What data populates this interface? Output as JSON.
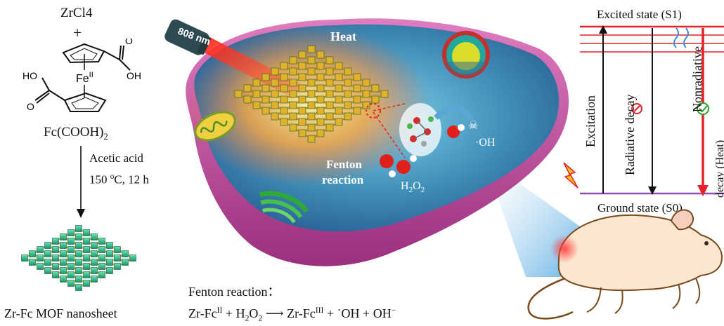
{
  "synthesis": {
    "reagent": "ZrCl4",
    "plus": "+",
    "fe_label": "Fe",
    "fe_ox": "II",
    "ho_label": "HO",
    "oh_label": "OH",
    "o_label": "O",
    "ligand_main": "Fc(COOH)",
    "ligand_sub": "2",
    "condition_1": "Acetic acid",
    "condition_2_pre": "150 ",
    "condition_2_sup": "o",
    "condition_2_post": "C, 12 h",
    "product": "Zr-Fc MOF nanosheet"
  },
  "cell": {
    "laser_label": "808 nm",
    "heat_label": "Heat",
    "fenton_label_1": "Fenton",
    "fenton_label_2": "reaction",
    "h2o2_main": "H",
    "h2o2_sub1": "2",
    "h2o2_mid": "O",
    "h2o2_sub2": "2",
    "oh_radical": "OH",
    "radical_dot": "·"
  },
  "equation": {
    "title": "Fenton reaction：",
    "lhs_1": "Zr-Fc",
    "lhs_1_sup": "II",
    "plus_1": " + H",
    "h_sub": "2",
    "o_part": "O",
    "o_sub": "2",
    "arrow": "⟶",
    "rhs_1": "Zr-Fc",
    "rhs_1_sup": "III",
    "plus_2": " + ",
    "radical": "OH",
    "plus_3": " + OH",
    "minus": "−"
  },
  "energy": {
    "excited": "Excited state (S1)",
    "ground": "Ground state (S0)",
    "excitation": "Excitation",
    "radiative": "Radiative decay",
    "nonradiative": "Nonradiative",
    "nonradiative_2": "decay (Heat)"
  },
  "colors": {
    "excited_line": "#e8202a",
    "ground_line": "#8a4fb3",
    "cell_membrane": "#c44b9a",
    "cell_interior": "#3f8fb8",
    "mof_green": "#2bb58a",
    "mof_gold": "#d9a416",
    "laser_red": "#e5231c"
  }
}
